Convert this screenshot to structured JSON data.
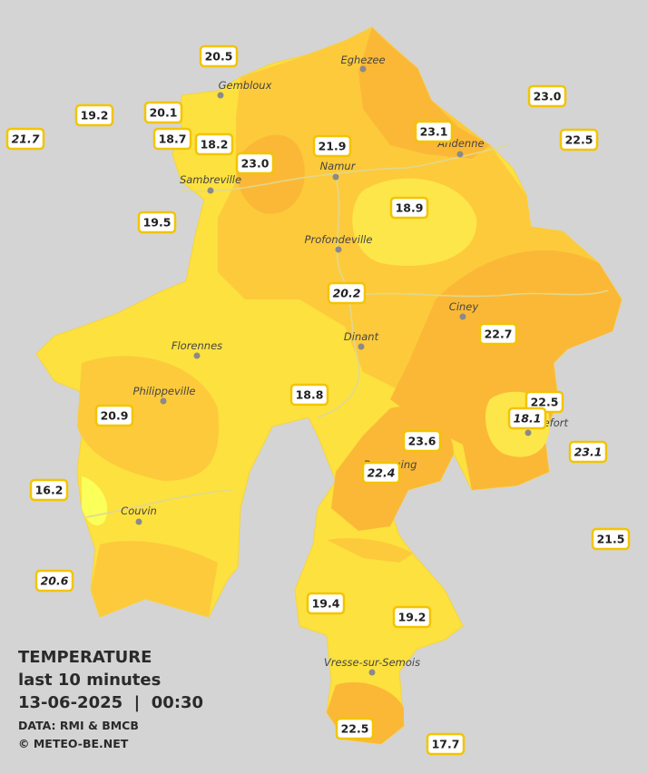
{
  "legend": {
    "title": "TEMPERATURE",
    "subtitle": "last 10 minutes",
    "datetime": "13-06-2025  |  00:30",
    "source": "DATA: RMI & BMCB",
    "copyright": "© METEO-BE.NET"
  },
  "cities": [
    "Eghezee",
    "Gembloux",
    "Andenne",
    "Sambreville",
    "Namur",
    "Profondeville",
    "Ciney",
    "Dinant",
    "Florennes",
    "Philippeville",
    "Rochefort",
    "Beauraing",
    "Couvin",
    "Vresse-sur-Semois"
  ],
  "stations": [
    "20.5",
    "19.2",
    "20.1",
    "21.7",
    "18.7",
    "18.2",
    "23.0",
    "21.9",
    "23.1",
    "23.0",
    "22.5",
    "19.5",
    "18.9",
    "20.2",
    "22.7",
    "18.8",
    "22.5",
    "18.1",
    "20.9",
    "23.6",
    "23.1",
    "22.4",
    "16.2",
    "21.5",
    "20.6",
    "19.4",
    "19.2",
    "22.5",
    "17.7"
  ]
}
